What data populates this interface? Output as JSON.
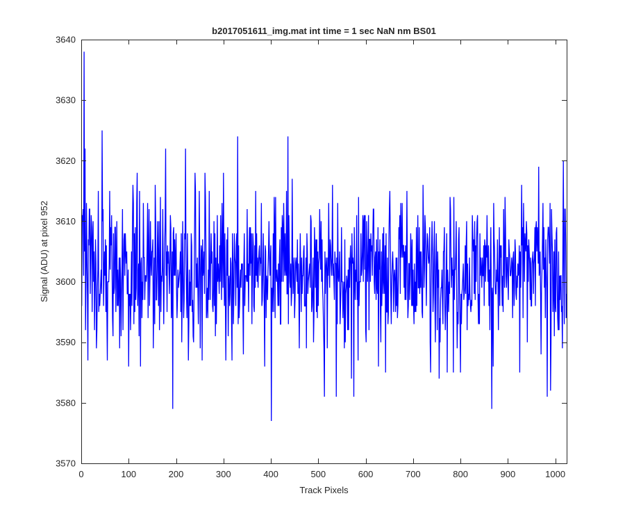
{
  "chart_data": {
    "type": "line",
    "title": "b2017051611_img.mat int time = 1 sec  NaN nm BS01",
    "xlabel": "Track Pixels",
    "ylabel": "Signal (ADU) at pixel 952",
    "xlim": [
      0,
      1024
    ],
    "ylim": [
      3570,
      3640
    ],
    "xticks": [
      0,
      100,
      200,
      300,
      400,
      500,
      600,
      700,
      800,
      900,
      1000
    ],
    "yticks": [
      3570,
      3580,
      3590,
      3600,
      3610,
      3620,
      3630,
      3640
    ],
    "grid": false,
    "box": true,
    "series": [
      {
        "color": "#0000ff",
        "x_start": 1,
        "x_step": 1,
        "n_points": 1024,
        "y_range": [
          3577,
          3638
        ],
        "typical_range": [
          3592,
          3612
        ],
        "y_keypoints": [
          [
            1,
            3596
          ],
          [
            3,
            3610
          ],
          [
            6,
            3638
          ],
          [
            8,
            3622
          ],
          [
            10,
            3600
          ],
          [
            12,
            3604
          ],
          [
            14,
            3587
          ],
          [
            17,
            3612
          ],
          [
            20,
            3605
          ],
          [
            28,
            3592
          ],
          [
            30,
            3607
          ],
          [
            33,
            3592
          ],
          [
            36,
            3615
          ],
          [
            44,
            3625
          ],
          [
            47,
            3596
          ],
          [
            55,
            3587
          ],
          [
            60,
            3615
          ],
          [
            66,
            3594
          ],
          [
            75,
            3610
          ],
          [
            80,
            3604
          ],
          [
            84,
            3591
          ],
          [
            93,
            3608
          ],
          [
            100,
            3586
          ],
          [
            110,
            3613
          ],
          [
            118,
            3618
          ],
          [
            125,
            3586
          ],
          [
            128,
            3594
          ],
          [
            133,
            3604
          ],
          [
            140,
            3613
          ],
          [
            150,
            3605
          ],
          [
            155,
            3593
          ],
          [
            162,
            3604
          ],
          [
            170,
            3600
          ],
          [
            178,
            3622
          ],
          [
            185,
            3602
          ],
          [
            193,
            3579
          ],
          [
            200,
            3608
          ],
          [
            210,
            3595
          ],
          [
            220,
            3622
          ],
          [
            227,
            3593
          ],
          [
            230,
            3600
          ],
          [
            240,
            3618
          ],
          [
            247,
            3593
          ],
          [
            250,
            3604
          ],
          [
            255,
            3587
          ],
          [
            262,
            3614
          ],
          [
            272,
            3597
          ],
          [
            280,
            3610
          ],
          [
            289,
            3603
          ],
          [
            300,
            3618
          ],
          [
            305,
            3587
          ],
          [
            320,
            3603
          ],
          [
            330,
            3624
          ],
          [
            335,
            3600
          ],
          [
            342,
            3588
          ],
          [
            350,
            3612
          ],
          [
            358,
            3603
          ],
          [
            365,
            3595
          ],
          [
            372,
            3604
          ],
          [
            380,
            3613
          ],
          [
            387,
            3586
          ],
          [
            392,
            3600
          ],
          [
            401,
            3577
          ],
          [
            410,
            3614
          ],
          [
            420,
            3593
          ],
          [
            430,
            3608
          ],
          [
            436,
            3624
          ],
          [
            440,
            3600
          ],
          [
            445,
            3617
          ],
          [
            450,
            3594
          ],
          [
            455,
            3600
          ],
          [
            460,
            3589
          ],
          [
            466,
            3598
          ],
          [
            470,
            3606
          ],
          [
            475,
            3589
          ],
          [
            482,
            3603
          ],
          [
            490,
            3590
          ],
          [
            500,
            3596
          ],
          [
            507,
            3600
          ],
          [
            513,
            3581
          ],
          [
            520,
            3604
          ],
          [
            530,
            3616
          ],
          [
            538,
            3581
          ],
          [
            545,
            3605
          ],
          [
            550,
            3600
          ],
          [
            557,
            3590
          ],
          [
            563,
            3602
          ],
          [
            570,
            3584
          ],
          [
            575,
            3581
          ],
          [
            585,
            3614
          ],
          [
            592,
            3602
          ],
          [
            600,
            3592
          ],
          [
            605,
            3605
          ],
          [
            615,
            3607
          ],
          [
            620,
            3604
          ],
          [
            627,
            3586
          ],
          [
            640,
            3598
          ],
          [
            650,
            3612
          ],
          [
            655,
            3600
          ],
          [
            662,
            3600
          ],
          [
            670,
            3609
          ],
          [
            680,
            3606
          ],
          [
            690,
            3596
          ],
          [
            695,
            3608
          ],
          [
            700,
            3602
          ],
          [
            705,
            3600
          ],
          [
            712,
            3599
          ],
          [
            720,
            3594
          ],
          [
            725,
            3611
          ],
          [
            732,
            3604
          ],
          [
            737,
            3585
          ],
          [
            745,
            3610
          ],
          [
            752,
            3605
          ],
          [
            758,
            3597
          ],
          [
            765,
            3605
          ],
          [
            772,
            3585
          ],
          [
            778,
            3614
          ],
          [
            785,
            3585
          ],
          [
            800,
            3585
          ],
          [
            806,
            3603
          ],
          [
            812,
            3606
          ],
          [
            820,
            3598
          ],
          [
            829,
            3598
          ],
          [
            836,
            3611
          ],
          [
            843,
            3604
          ],
          [
            848,
            3601
          ],
          [
            852,
            3606
          ],
          [
            858,
            3600
          ],
          [
            866,
            3579
          ],
          [
            870,
            3613
          ],
          [
            878,
            3607
          ],
          [
            885,
            3604
          ],
          [
            890,
            3595
          ],
          [
            895,
            3609
          ],
          [
            900,
            3600
          ],
          [
            910,
            3594
          ],
          [
            914,
            3599
          ],
          [
            918,
            3597
          ],
          [
            922,
            3601
          ],
          [
            925,
            3585
          ],
          [
            930,
            3606
          ],
          [
            935,
            3600
          ],
          [
            940,
            3608
          ],
          [
            945,
            3605
          ],
          [
            950,
            3596
          ],
          [
            955,
            3603
          ],
          [
            960,
            3610
          ],
          [
            965,
            3619
          ],
          [
            970,
            3588
          ],
          [
            978,
            3604
          ],
          [
            983,
            3581
          ],
          [
            987,
            3606
          ],
          [
            990,
            3582
          ],
          [
            995,
            3595
          ],
          [
            1000,
            3596
          ],
          [
            1005,
            3594
          ],
          [
            1010,
            3597
          ],
          [
            1014,
            3596
          ],
          [
            1017,
            3620
          ],
          [
            1020,
            3612
          ],
          [
            1022,
            3606
          ],
          [
            1024,
            3598
          ]
        ]
      }
    ]
  }
}
